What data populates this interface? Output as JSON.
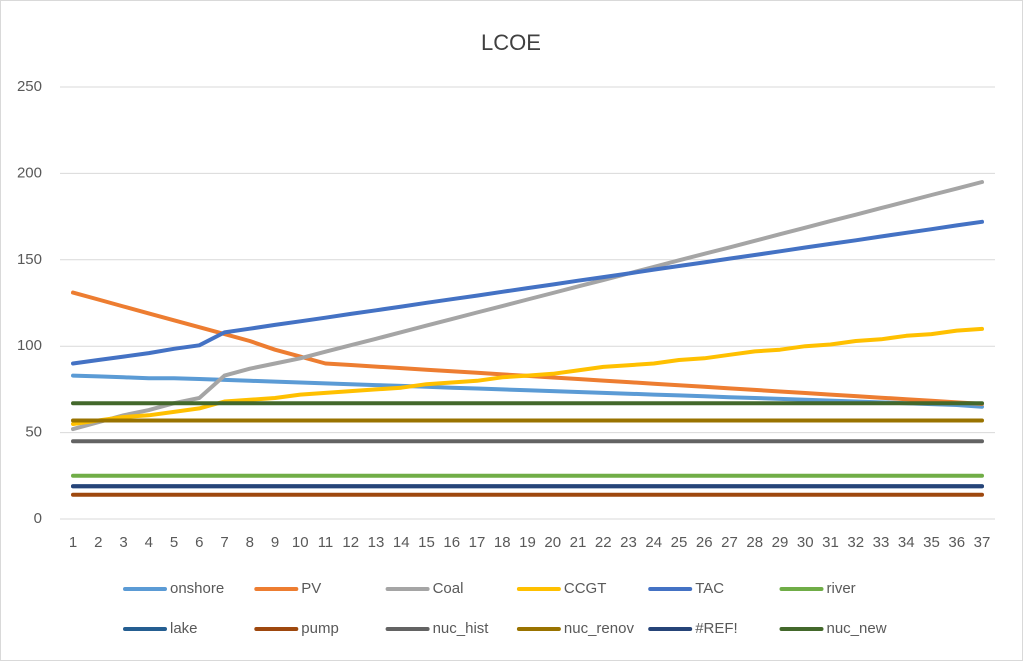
{
  "chart_data": {
    "type": "line",
    "title": "LCOE",
    "categories": [
      1,
      2,
      3,
      4,
      5,
      6,
      7,
      8,
      9,
      10,
      11,
      12,
      13,
      14,
      15,
      16,
      17,
      18,
      19,
      20,
      21,
      22,
      23,
      24,
      25,
      26,
      27,
      28,
      29,
      30,
      31,
      32,
      33,
      34,
      35,
      36,
      37
    ],
    "ylim": [
      0,
      250
    ],
    "yticks": [
      0,
      50,
      100,
      150,
      200,
      250
    ],
    "grid": true,
    "legend": "bottom",
    "series": [
      {
        "name": "onshore",
        "color": "#5b9bd5",
        "values": [
          83,
          82.5,
          82,
          81.5,
          81.5,
          81,
          80.5,
          80,
          79.5,
          79,
          78.5,
          78,
          77.5,
          77,
          76.5,
          76,
          75.5,
          75,
          74.5,
          74,
          73.5,
          73,
          72.5,
          72,
          71.5,
          71,
          70.5,
          70,
          69.5,
          69,
          68.5,
          68,
          67.5,
          67,
          66.5,
          66,
          65
        ]
      },
      {
        "name": "PV",
        "color": "#ed7d31",
        "values": [
          131,
          127,
          123,
          119,
          115,
          111,
          107,
          103,
          98,
          94,
          90,
          89.1,
          88.2,
          87.3,
          86.4,
          85.5,
          84.6,
          83.7,
          82.8,
          81.9,
          81,
          80.1,
          79.2,
          78.3,
          77.4,
          76.5,
          75.6,
          74.7,
          73.8,
          72.9,
          72,
          71.1,
          70.2,
          69.3,
          68.4,
          67.5,
          66.6
        ]
      },
      {
        "name": "Coal",
        "color": "#a5a5a5",
        "values": [
          52,
          56,
          60,
          63,
          67,
          70,
          83,
          87,
          90,
          93,
          96.8,
          100.6,
          104.3,
          108.1,
          111.9,
          115.7,
          119.5,
          123.2,
          127,
          130.8,
          134.6,
          138.3,
          142.1,
          145.9,
          149.7,
          153.5,
          157.2,
          161,
          164.8,
          168.6,
          172.4,
          176.1,
          179.9,
          183.7,
          187.5,
          191.2,
          195
        ]
      },
      {
        "name": "CCGT",
        "color": "#ffc000",
        "values": [
          55,
          57,
          59,
          60,
          62,
          64,
          68,
          69,
          70,
          72,
          73,
          74,
          75,
          76,
          78,
          79,
          80,
          82,
          83,
          84,
          86,
          88,
          89,
          90,
          92,
          93,
          95,
          97,
          98,
          100,
          101,
          103,
          104,
          106,
          107,
          109,
          110
        ]
      },
      {
        "name": "TAC",
        "color": "#4472c4",
        "values": [
          90,
          92,
          94,
          96,
          98.5,
          100.5,
          108,
          110.1,
          112.3,
          114.4,
          116.5,
          118.7,
          120.8,
          122.9,
          125.1,
          127.2,
          129.3,
          131.5,
          133.6,
          135.7,
          137.9,
          140,
          142.1,
          144.3,
          146.4,
          148.5,
          150.7,
          152.8,
          154.9,
          157.1,
          159.2,
          161.3,
          163.5,
          165.6,
          167.7,
          169.9,
          172
        ]
      },
      {
        "name": "river",
        "color": "#70ad47",
        "values": [
          25,
          25,
          25,
          25,
          25,
          25,
          25,
          25,
          25,
          25,
          25,
          25,
          25,
          25,
          25,
          25,
          25,
          25,
          25,
          25,
          25,
          25,
          25,
          25,
          25,
          25,
          25,
          25,
          25,
          25,
          25,
          25,
          25,
          25,
          25,
          25,
          25
        ]
      },
      {
        "name": "lake",
        "color": "#255e91",
        "values": [
          19,
          19,
          19,
          19,
          19,
          19,
          19,
          19,
          19,
          19,
          19,
          19,
          19,
          19,
          19,
          19,
          19,
          19,
          19,
          19,
          19,
          19,
          19,
          19,
          19,
          19,
          19,
          19,
          19,
          19,
          19,
          19,
          19,
          19,
          19,
          19,
          19
        ]
      },
      {
        "name": "pump",
        "color": "#9e480e",
        "values": [
          14,
          14,
          14,
          14,
          14,
          14,
          14,
          14,
          14,
          14,
          14,
          14,
          14,
          14,
          14,
          14,
          14,
          14,
          14,
          14,
          14,
          14,
          14,
          14,
          14,
          14,
          14,
          14,
          14,
          14,
          14,
          14,
          14,
          14,
          14,
          14,
          14
        ]
      },
      {
        "name": "nuc_hist",
        "color": "#636363",
        "values": [
          45,
          45,
          45,
          45,
          45,
          45,
          45,
          45,
          45,
          45,
          45,
          45,
          45,
          45,
          45,
          45,
          45,
          45,
          45,
          45,
          45,
          45,
          45,
          45,
          45,
          45,
          45,
          45,
          45,
          45,
          45,
          45,
          45,
          45,
          45,
          45,
          45
        ]
      },
      {
        "name": "nuc_renov",
        "color": "#997300",
        "values": [
          57,
          57,
          57,
          57,
          57,
          57,
          57,
          57,
          57,
          57,
          57,
          57,
          57,
          57,
          57,
          57,
          57,
          57,
          57,
          57,
          57,
          57,
          57,
          57,
          57,
          57,
          57,
          57,
          57,
          57,
          57,
          57,
          57,
          57,
          57,
          57,
          57
        ]
      },
      {
        "name": "#REF!",
        "color": "#264478",
        "values": [
          19,
          19,
          19,
          19,
          19,
          19,
          19,
          19,
          19,
          19,
          19,
          19,
          19,
          19,
          19,
          19,
          19,
          19,
          19,
          19,
          19,
          19,
          19,
          19,
          19,
          19,
          19,
          19,
          19,
          19,
          19,
          19,
          19,
          19,
          19,
          19,
          19
        ]
      },
      {
        "name": "nuc_new",
        "color": "#43682b",
        "values": [
          67,
          67,
          67,
          67,
          67,
          67,
          67,
          67,
          67,
          67,
          67,
          67,
          67,
          67,
          67,
          67,
          67,
          67,
          67,
          67,
          67,
          67,
          67,
          67,
          67,
          67,
          67,
          67,
          67,
          67,
          67,
          67,
          67,
          67,
          67,
          67,
          67
        ]
      }
    ]
  }
}
